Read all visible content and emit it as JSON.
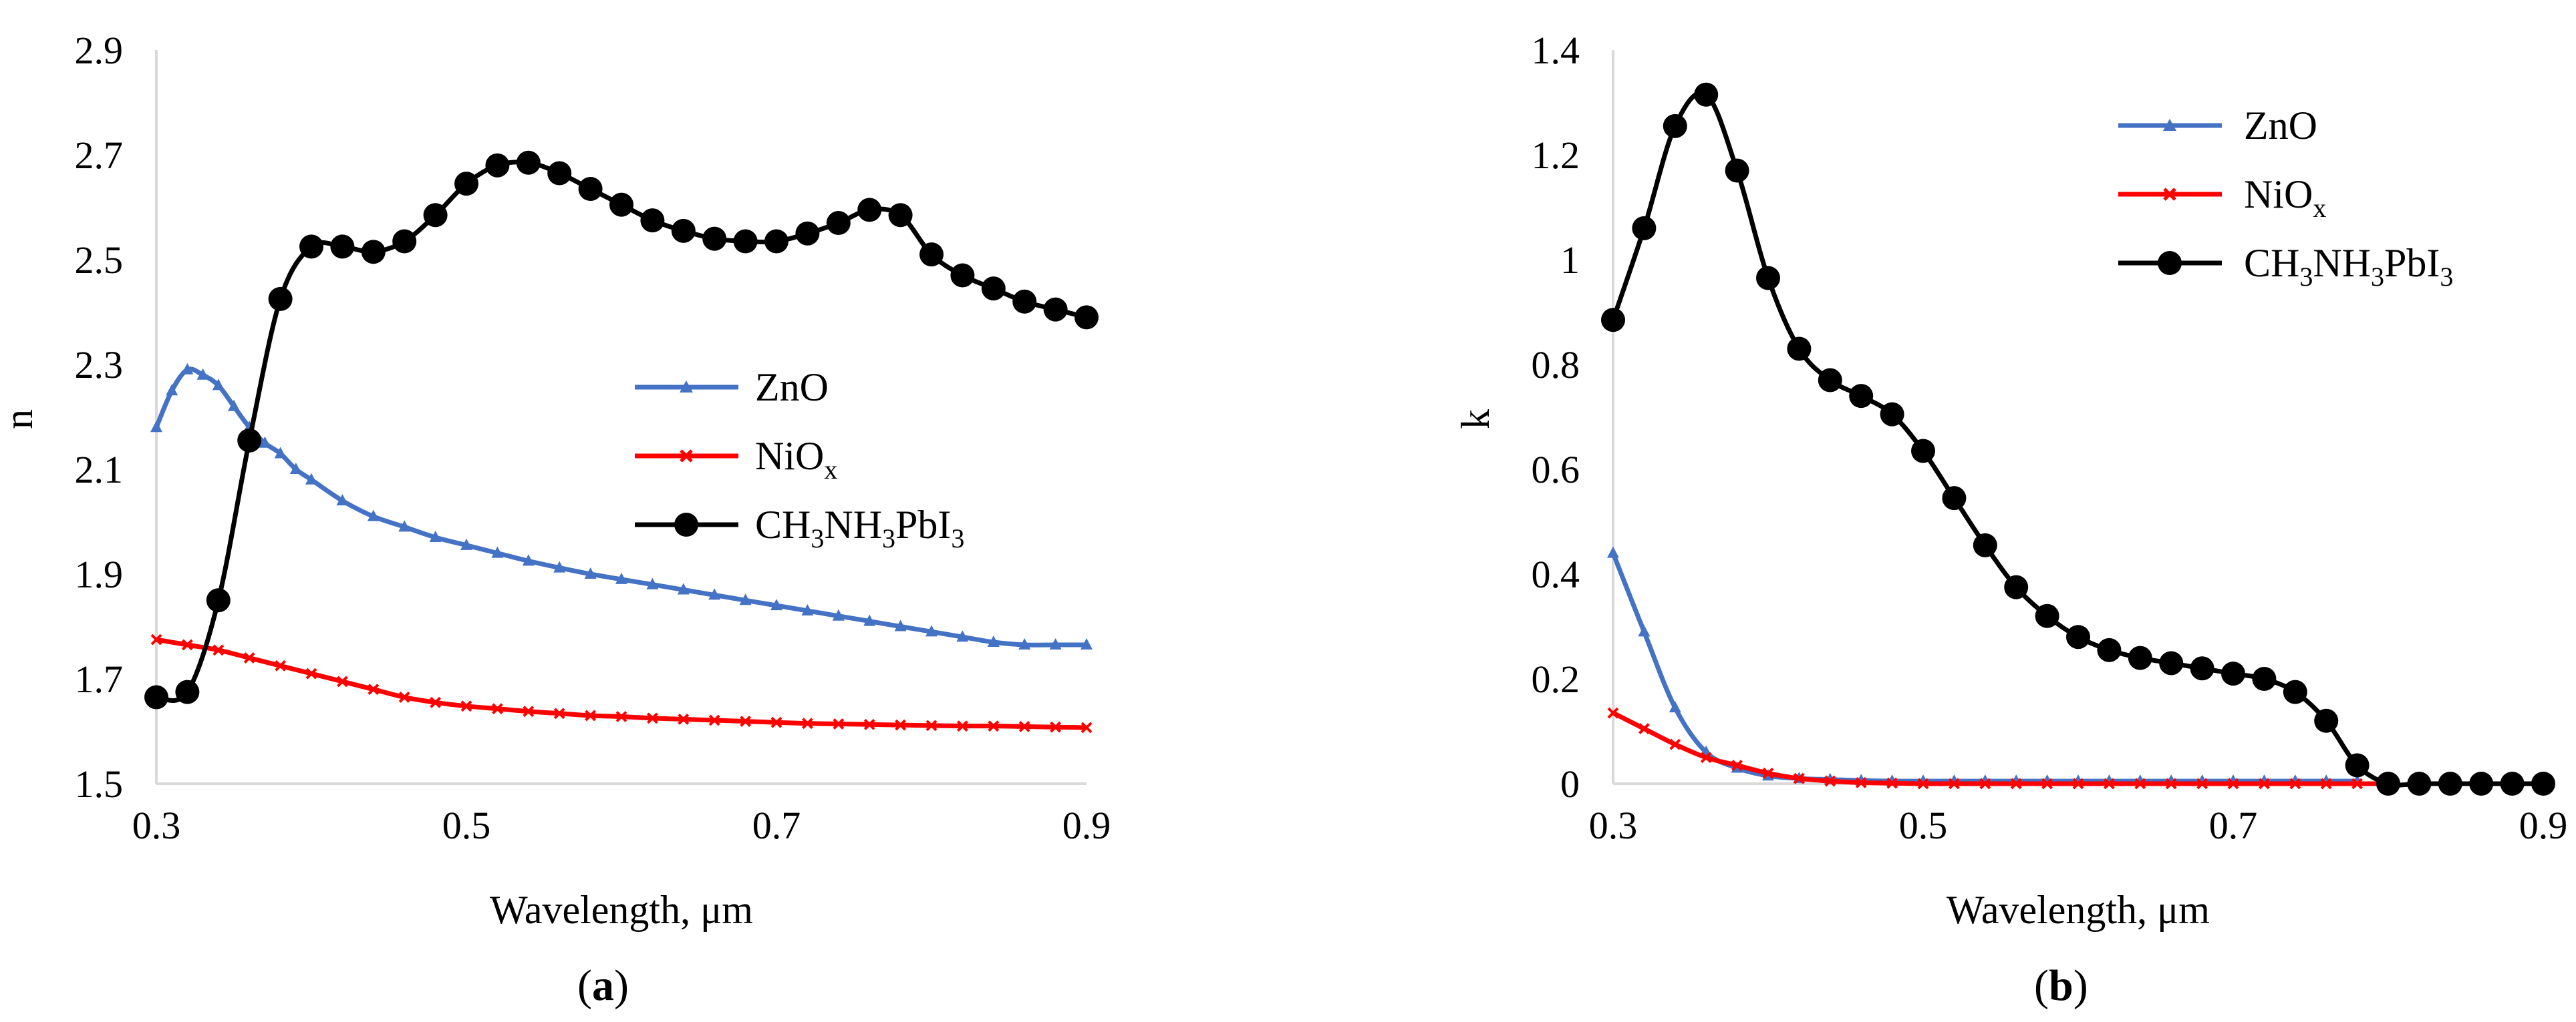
{
  "figure": {
    "panel_labels": [
      {
        "open": "(",
        "letter": "a",
        "close": ")"
      },
      {
        "open": "(",
        "letter": "b",
        "close": ")"
      }
    ]
  },
  "chart_data": [
    {
      "type": "line",
      "panel": "a",
      "xlabel": "Wavelength, μm",
      "ylabel": "n",
      "xlim": [
        0.3,
        0.9
      ],
      "ylim": [
        1.5,
        2.9
      ],
      "xticks": [
        0.3,
        0.5,
        0.7,
        0.9
      ],
      "xtick_labels": [
        "0.3",
        "0.5",
        "0.7",
        "0.9"
      ],
      "yticks": [
        1.5,
        1.7,
        1.9,
        2.1,
        2.3,
        2.5,
        2.7,
        2.9
      ],
      "ytick_labels": [
        "1.5",
        "1.7",
        "1.9",
        "2.1",
        "2.3",
        "2.5",
        "2.7",
        "2.9"
      ],
      "grid": false,
      "legend_position": "middle-right",
      "series": [
        {
          "name": "ZnO",
          "legend": {
            "base": "ZnO",
            "sub": ""
          },
          "color": "#4472C4",
          "marker": "triangle",
          "x": [
            0.3,
            0.31,
            0.32,
            0.33,
            0.34,
            0.35,
            0.36,
            0.37,
            0.38,
            0.39,
            0.4,
            0.42,
            0.44,
            0.46,
            0.48,
            0.5,
            0.52,
            0.54,
            0.56,
            0.58,
            0.6,
            0.62,
            0.64,
            0.66,
            0.68,
            0.7,
            0.72,
            0.74,
            0.76,
            0.78,
            0.8,
            0.82,
            0.84,
            0.86,
            0.88,
            0.9
          ],
          "y": [
            2.18,
            2.25,
            2.29,
            2.28,
            2.26,
            2.22,
            2.18,
            2.15,
            2.13,
            2.1,
            2.08,
            2.04,
            2.01,
            1.99,
            1.97,
            1.955,
            1.94,
            1.925,
            1.912,
            1.9,
            1.89,
            1.88,
            1.87,
            1.86,
            1.85,
            1.84,
            1.83,
            1.82,
            1.81,
            1.8,
            1.79,
            1.78,
            1.77,
            1.765,
            1.765,
            1.765
          ]
        },
        {
          "name": "NiOx",
          "legend": {
            "base": "NiO",
            "sub": "x"
          },
          "color": "#FF0000",
          "marker": "x",
          "x": [
            0.3,
            0.32,
            0.34,
            0.36,
            0.38,
            0.4,
            0.42,
            0.44,
            0.46,
            0.48,
            0.5,
            0.52,
            0.54,
            0.56,
            0.58,
            0.6,
            0.62,
            0.64,
            0.66,
            0.68,
            0.7,
            0.72,
            0.74,
            0.76,
            0.78,
            0.8,
            0.82,
            0.84,
            0.86,
            0.88,
            0.9
          ],
          "y": [
            1.775,
            1.765,
            1.755,
            1.74,
            1.725,
            1.71,
            1.695,
            1.68,
            1.665,
            1.655,
            1.648,
            1.643,
            1.638,
            1.634,
            1.63,
            1.628,
            1.625,
            1.623,
            1.621,
            1.619,
            1.617,
            1.615,
            1.614,
            1.613,
            1.612,
            1.611,
            1.61,
            1.61,
            1.609,
            1.608,
            1.607
          ]
        },
        {
          "name": "CH3NH3PbI3",
          "legend": {
            "t1": "CH",
            "s1": "3",
            "t2": "NH",
            "s2": "3",
            "t3": "PbI",
            "s3": "3"
          },
          "color": "#000000",
          "marker": "circle",
          "x": [
            0.3,
            0.32,
            0.34,
            0.36,
            0.38,
            0.4,
            0.42,
            0.44,
            0.46,
            0.48,
            0.5,
            0.52,
            0.54,
            0.56,
            0.58,
            0.6,
            0.62,
            0.64,
            0.66,
            0.68,
            0.7,
            0.72,
            0.74,
            0.76,
            0.78,
            0.8,
            0.82,
            0.84,
            0.86,
            0.88,
            0.9
          ],
          "y": [
            1.665,
            1.675,
            1.85,
            2.155,
            2.425,
            2.525,
            2.525,
            2.515,
            2.535,
            2.585,
            2.645,
            2.68,
            2.685,
            2.665,
            2.635,
            2.605,
            2.575,
            2.555,
            2.54,
            2.535,
            2.535,
            2.55,
            2.57,
            2.595,
            2.585,
            2.51,
            2.47,
            2.445,
            2.42,
            2.405,
            2.39
          ]
        }
      ]
    },
    {
      "type": "line",
      "panel": "b",
      "xlabel": "Wavelength, μm",
      "ylabel": "k",
      "xlim": [
        0.3,
        0.9
      ],
      "ylim": [
        0,
        1.4
      ],
      "xticks": [
        0.3,
        0.5,
        0.7,
        0.9
      ],
      "xtick_labels": [
        "0.3",
        "0.5",
        "0.7",
        "0.9"
      ],
      "yticks": [
        0,
        0.2,
        0.4,
        0.6,
        0.8,
        1.0,
        1.2,
        1.4
      ],
      "ytick_labels": [
        "0",
        "0.2",
        "0.4",
        "0.6",
        "0.8",
        "1",
        "1.2",
        "1.4"
      ],
      "grid": false,
      "legend_position": "top-right",
      "series": [
        {
          "name": "ZnO",
          "legend": {
            "base": "ZnO",
            "sub": ""
          },
          "color": "#4472C4",
          "marker": "triangle",
          "x": [
            0.3,
            0.32,
            0.34,
            0.36,
            0.38,
            0.4,
            0.42,
            0.44,
            0.46,
            0.48,
            0.5,
            0.52,
            0.54,
            0.56,
            0.58,
            0.6,
            0.62,
            0.64,
            0.66,
            0.68,
            0.7,
            0.72,
            0.74,
            0.76,
            0.78
          ],
          "y": [
            0.44,
            0.29,
            0.145,
            0.06,
            0.03,
            0.015,
            0.01,
            0.008,
            0.006,
            0.005,
            0.005,
            0.005,
            0.005,
            0.005,
            0.005,
            0.005,
            0.005,
            0.005,
            0.005,
            0.005,
            0.005,
            0.005,
            0.005,
            0.005,
            0.005
          ]
        },
        {
          "name": "NiOx",
          "legend": {
            "base": "NiO",
            "sub": "x"
          },
          "color": "#FF0000",
          "marker": "x",
          "x": [
            0.3,
            0.32,
            0.34,
            0.36,
            0.38,
            0.4,
            0.42,
            0.44,
            0.46,
            0.48,
            0.5,
            0.52,
            0.54,
            0.56,
            0.58,
            0.6,
            0.62,
            0.64,
            0.66,
            0.68,
            0.7,
            0.72,
            0.74,
            0.76,
            0.78,
            0.8
          ],
          "y": [
            0.135,
            0.105,
            0.075,
            0.05,
            0.035,
            0.02,
            0.01,
            0.005,
            0.002,
            0.001,
            0,
            0,
            0,
            0,
            0,
            0,
            0,
            0,
            0,
            0,
            0,
            0,
            0,
            0,
            0,
            0
          ]
        },
        {
          "name": "CH3NH3PbI3",
          "legend": {
            "t1": "CH",
            "s1": "3",
            "t2": "NH",
            "s2": "3",
            "t3": "PbI",
            "s3": "3"
          },
          "color": "#000000",
          "marker": "circle",
          "x": [
            0.3,
            0.32,
            0.34,
            0.36,
            0.38,
            0.4,
            0.42,
            0.44,
            0.46,
            0.48,
            0.5,
            0.52,
            0.54,
            0.56,
            0.58,
            0.6,
            0.62,
            0.64,
            0.66,
            0.68,
            0.7,
            0.72,
            0.74,
            0.76,
            0.78,
            0.8,
            0.82,
            0.84,
            0.86,
            0.88,
            0.9
          ],
          "y": [
            0.885,
            1.06,
            1.255,
            1.315,
            1.17,
            0.965,
            0.83,
            0.77,
            0.74,
            0.705,
            0.635,
            0.545,
            0.455,
            0.375,
            0.32,
            0.28,
            0.255,
            0.24,
            0.23,
            0.22,
            0.21,
            0.2,
            0.175,
            0.12,
            0.035,
            0.0,
            0.0,
            0.0,
            0.0,
            0.0,
            0.0
          ]
        }
      ]
    }
  ]
}
